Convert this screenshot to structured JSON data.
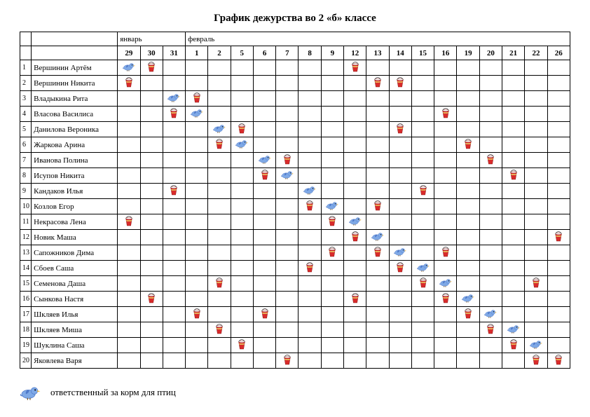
{
  "title": "График дежурства во 2 «б» классе",
  "months": [
    {
      "label": "январь",
      "span": 3
    },
    {
      "label": "февраль",
      "span": 17
    }
  ],
  "days": [
    "29",
    "30",
    "31",
    "1",
    "2",
    "5",
    "6",
    "7",
    "8",
    "9",
    "12",
    "13",
    "14",
    "15",
    "16",
    "19",
    "20",
    "21",
    "22",
    "26"
  ],
  "icon_colors": {
    "bird_body": "#7fa9e6",
    "bird_dark": "#4f79c9",
    "bird_beak": "#f0b030",
    "bucket_red": "#d92b2b",
    "bucket_white": "#ffffff",
    "bucket_band": "#e8c060"
  },
  "legend": {
    "bird": "ответственный за корм для птиц"
  },
  "students": [
    {
      "n": 1,
      "name": "Вершинин Артём",
      "marks": {
        "29": "bird",
        "30": "bucket",
        "12": "bucket"
      }
    },
    {
      "n": 2,
      "name": "Вершинин Никита",
      "marks": {
        "29": "bucket",
        "13": "bucket",
        "14": "bucket"
      }
    },
    {
      "n": 3,
      "name": "Владыкина Рита",
      "marks": {
        "31": "bird",
        "1": "bucket"
      }
    },
    {
      "n": 4,
      "name": "Власова Василиса",
      "marks": {
        "31": "bucket",
        "1": "bird",
        "16": "bucket"
      }
    },
    {
      "n": 5,
      "name": "Данилова Вероника",
      "marks": {
        "2": "bird",
        "5": "bucket",
        "14": "bucket"
      }
    },
    {
      "n": 6,
      "name": "Жаркова Арина",
      "marks": {
        "2": "bucket",
        "5": "bird",
        "19": "bucket"
      }
    },
    {
      "n": 7,
      "name": "Иванова Полина",
      "marks": {
        "6": "bird",
        "7": "bucket",
        "20": "bucket"
      }
    },
    {
      "n": 8,
      "name": "Исупов Никита",
      "marks": {
        "6": "bucket",
        "7": "bird",
        "21": "bucket"
      }
    },
    {
      "n": 9,
      "name": "Кандаков Илья",
      "marks": {
        "31": "bucket",
        "8": "bird",
        "15": "bucket"
      }
    },
    {
      "n": 10,
      "name": "Козлов Егор",
      "marks": {
        "8": "bucket",
        "9": "bird",
        "13": "bucket"
      }
    },
    {
      "n": 11,
      "name": "Некрасова Лена",
      "marks": {
        "29": "bucket",
        "9": "bucket",
        "12": "bird"
      }
    },
    {
      "n": 12,
      "name": "Новик Маша",
      "marks": {
        "12": "bucket",
        "13": "bird",
        "26": "bucket"
      }
    },
    {
      "n": 13,
      "name": "Сапожников Дима",
      "marks": {
        "9": "bucket",
        "13": "bucket",
        "14": "bird",
        "16": "bucket"
      }
    },
    {
      "n": 14,
      "name": "Сбоев Саша",
      "marks": {
        "8": "bucket",
        "14": "bucket",
        "15": "bird"
      }
    },
    {
      "n": 15,
      "name": "Семенова Даша",
      "marks": {
        "2": "bucket",
        "15": "bucket",
        "16": "bird",
        "22": "bucket"
      }
    },
    {
      "n": 16,
      "name": "Сынкова Настя",
      "marks": {
        "30": "bucket",
        "12": "bucket",
        "16": "bucket",
        "19": "bird"
      }
    },
    {
      "n": 17,
      "name": "Шкляев Илья",
      "marks": {
        "1": "bucket",
        "6": "bucket",
        "19": "bucket",
        "20": "bird"
      }
    },
    {
      "n": 18,
      "name": "Шкляев Миша",
      "marks": {
        "2": "bucket",
        "20": "bucket",
        "21": "bird"
      }
    },
    {
      "n": 19,
      "name": "Шуклина Саша",
      "marks": {
        "5": "bucket",
        "21": "bucket",
        "22": "bird"
      }
    },
    {
      "n": 20,
      "name": "Яковлева Варя",
      "marks": {
        "7": "bucket",
        "22": "bucket",
        "26": "bucket"
      }
    }
  ]
}
